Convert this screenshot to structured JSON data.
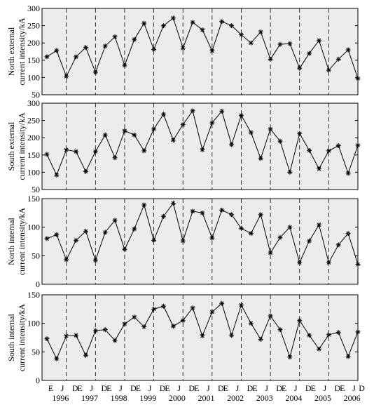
{
  "chart_data": [
    {
      "type": "line",
      "ylabel": [
        "North external",
        "current intensity/kA"
      ],
      "color": "#000000",
      "x": [
        1,
        2,
        3,
        4,
        5,
        6,
        7,
        8,
        9,
        10,
        11,
        12,
        13,
        14,
        15,
        16,
        17,
        18,
        19,
        20,
        21,
        22,
        23,
        24,
        25,
        26,
        27,
        28,
        29,
        30,
        31,
        32,
        33
      ],
      "values": [
        160,
        178,
        103,
        160,
        187,
        115,
        191,
        218,
        135,
        210,
        257,
        181,
        250,
        272,
        185,
        260,
        238,
        177,
        262,
        250,
        224,
        200,
        232,
        153,
        196,
        198,
        127,
        170,
        207,
        121,
        153,
        180,
        97
      ],
      "xlim": [
        0.5,
        33
      ],
      "ylim": [
        50,
        300
      ],
      "yticks": [
        50,
        100,
        150,
        200,
        250,
        300
      ],
      "vlines": [
        3,
        6,
        9,
        12,
        15,
        18,
        21,
        24,
        27,
        30
      ]
    },
    {
      "type": "line",
      "ylabel": [
        "South external",
        "current intensity/kA"
      ],
      "color": "#000000",
      "x": [
        1,
        2,
        3,
        4,
        5,
        6,
        7,
        8,
        9,
        10,
        11,
        12,
        13,
        14,
        15,
        16,
        17,
        18,
        19,
        20,
        21,
        22,
        23,
        24,
        25,
        26,
        27,
        28,
        29,
        30,
        31,
        32,
        33
      ],
      "values": [
        152,
        92,
        165,
        160,
        102,
        160,
        208,
        142,
        220,
        208,
        162,
        225,
        268,
        193,
        238,
        278,
        165,
        243,
        277,
        180,
        265,
        215,
        140,
        225,
        190,
        100,
        212,
        163,
        110,
        162,
        177,
        97,
        178
      ],
      "xlim": [
        0.5,
        33
      ],
      "ylim": [
        50,
        300
      ],
      "yticks": [
        50,
        100,
        150,
        200,
        250,
        300
      ],
      "vlines": [
        3,
        6,
        9,
        12,
        15,
        18,
        21,
        24,
        27,
        30
      ]
    },
    {
      "type": "line",
      "ylabel": [
        "North internal",
        "current intensity/kA"
      ],
      "color": "#000000",
      "x": [
        1,
        2,
        3,
        4,
        5,
        6,
        7,
        8,
        9,
        10,
        11,
        12,
        13,
        14,
        15,
        16,
        17,
        18,
        19,
        20,
        21,
        22,
        23,
        24,
        25,
        26,
        27,
        28,
        29,
        30,
        31,
        32,
        33
      ],
      "values": [
        80,
        87,
        43,
        77,
        93,
        42,
        91,
        112,
        61,
        97,
        139,
        77,
        119,
        142,
        76,
        128,
        125,
        81,
        130,
        122,
        98,
        89,
        122,
        55,
        82,
        100,
        38,
        76,
        104,
        38,
        69,
        89,
        35
      ],
      "xlim": [
        0.5,
        33
      ],
      "ylim": [
        0,
        150
      ],
      "yticks": [
        0,
        50,
        100,
        150
      ],
      "vlines": [
        3,
        6,
        9,
        12,
        15,
        18,
        21,
        24,
        27,
        30
      ]
    },
    {
      "type": "line",
      "ylabel": [
        "South internal",
        "current intensity/kA"
      ],
      "color": "#000000",
      "x": [
        1,
        2,
        3,
        4,
        5,
        6,
        7,
        8,
        9,
        10,
        11,
        12,
        13,
        14,
        15,
        16,
        17,
        18,
        19,
        20,
        21,
        22,
        23,
        24,
        25,
        26,
        27,
        28,
        29,
        30,
        31,
        32,
        33
      ],
      "values": [
        73,
        38,
        78,
        79,
        44,
        87,
        89,
        70,
        99,
        111,
        94,
        125,
        130,
        95,
        105,
        127,
        78,
        120,
        135,
        79,
        132,
        100,
        72,
        113,
        89,
        41,
        105,
        79,
        55,
        80,
        84,
        42,
        85
      ],
      "xlim": [
        0.5,
        33
      ],
      "ylim": [
        0,
        150
      ],
      "yticks": [
        0,
        50,
        100,
        150
      ],
      "vlines": [
        3,
        6,
        9,
        12,
        15,
        18,
        21,
        24,
        27,
        30
      ],
      "xticks": [
        {
          "value": 1.4,
          "label": "E"
        },
        {
          "value": 2.6,
          "label": "J"
        },
        {
          "value": 3.9,
          "label": "D"
        },
        {
          "value": 4.4,
          "label": "E"
        },
        {
          "value": 5.6,
          "label": "J"
        },
        {
          "value": 6.9,
          "label": "D"
        },
        {
          "value": 7.4,
          "label": "E"
        },
        {
          "value": 8.6,
          "label": "J"
        },
        {
          "value": 9.9,
          "label": "D"
        },
        {
          "value": 10.4,
          "label": "E"
        },
        {
          "value": 11.6,
          "label": "J"
        },
        {
          "value": 12.9,
          "label": "D"
        },
        {
          "value": 13.4,
          "label": "E"
        },
        {
          "value": 14.6,
          "label": "J"
        },
        {
          "value": 15.9,
          "label": "D"
        },
        {
          "value": 16.4,
          "label": "E"
        },
        {
          "value": 17.6,
          "label": "J"
        },
        {
          "value": 18.9,
          "label": "D"
        },
        {
          "value": 19.4,
          "label": "E"
        },
        {
          "value": 20.6,
          "label": "J"
        },
        {
          "value": 21.9,
          "label": "D"
        },
        {
          "value": 22.4,
          "label": "E"
        },
        {
          "value": 23.6,
          "label": "J"
        },
        {
          "value": 24.9,
          "label": "D"
        },
        {
          "value": 25.4,
          "label": "E"
        },
        {
          "value": 26.6,
          "label": "J"
        },
        {
          "value": 27.9,
          "label": "D"
        },
        {
          "value": 28.4,
          "label": "E"
        },
        {
          "value": 29.6,
          "label": "J"
        },
        {
          "value": 30.9,
          "label": "D"
        },
        {
          "value": 31.4,
          "label": "E"
        },
        {
          "value": 32.6,
          "label": "J"
        },
        {
          "value": 33.4,
          "label": "D"
        }
      ],
      "year_labels": [
        {
          "value": 2.4,
          "label": "1996"
        },
        {
          "value": 5.4,
          "label": "1997"
        },
        {
          "value": 8.4,
          "label": "1998"
        },
        {
          "value": 11.4,
          "label": "1999"
        },
        {
          "value": 14.4,
          "label": "2000"
        },
        {
          "value": 17.4,
          "label": "2001"
        },
        {
          "value": 20.4,
          "label": "2002"
        },
        {
          "value": 23.4,
          "label": "2003"
        },
        {
          "value": 26.4,
          "label": "2004"
        },
        {
          "value": 29.4,
          "label": "2005"
        },
        {
          "value": 32.4,
          "label": "2006"
        }
      ]
    }
  ]
}
